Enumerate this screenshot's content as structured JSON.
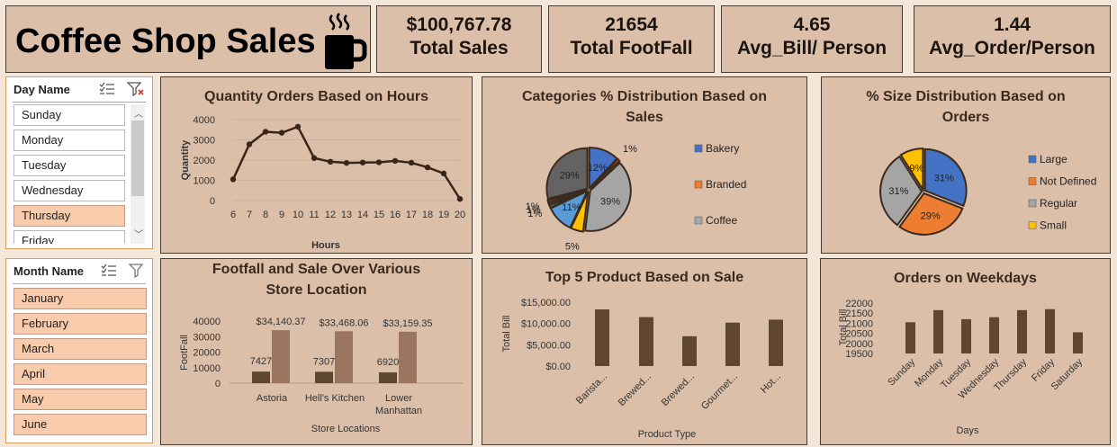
{
  "header": {
    "title": "Coffee Shop Sales"
  },
  "kpis": [
    {
      "value": "$100,767.78",
      "label": "Total Sales"
    },
    {
      "value": "21654",
      "label": "Total FootFall"
    },
    {
      "value": "4.65",
      "label": "Avg_Bill/ Person"
    },
    {
      "value": "1.44",
      "label": "Avg_Order/Person"
    }
  ],
  "day_slicer": {
    "title": "Day Name",
    "items": [
      "Sunday",
      "Monday",
      "Tuesday",
      "Wednesday",
      "Thursday",
      "Friday"
    ],
    "selected": [
      "Thursday"
    ]
  },
  "month_slicer": {
    "title": "Month Name",
    "items": [
      "January",
      "February",
      "March",
      "April",
      "May",
      "June"
    ],
    "selected": [
      "January",
      "February",
      "March",
      "April",
      "May",
      "June"
    ]
  },
  "colors": {
    "dark_brown": "#4a3424",
    "mid_brown": "#8f6e56",
    "bar": "#5e4631",
    "bar_light": "#9a7660"
  },
  "chart_data": [
    {
      "id": "hours",
      "type": "line",
      "title": "Quantity Orders Based on Hours",
      "xlabel": "Hours",
      "ylabel": "Quantity",
      "x": [
        6,
        7,
        8,
        9,
        10,
        11,
        12,
        13,
        14,
        15,
        16,
        17,
        18,
        19,
        20
      ],
      "values": [
        1050,
        2780,
        3400,
        3350,
        3650,
        2100,
        1920,
        1860,
        1880,
        1890,
        1960,
        1870,
        1640,
        1340,
        80
      ],
      "ylim": [
        0,
        4000
      ],
      "yticks": [
        "0",
        "1000",
        "2000",
        "3000",
        "4000"
      ]
    },
    {
      "id": "categories",
      "type": "pie",
      "title": "Categories % Distribution Based on Sales",
      "slices": [
        {
          "label": "12%",
          "value": 12,
          "color": "#4472c4",
          "series": "Bakery"
        },
        {
          "label": "1%",
          "value": 1,
          "color": "#ed7d31",
          "series": "Branded"
        },
        {
          "label": "39%",
          "value": 39,
          "color": "#a5a5a5",
          "series": "Coffee"
        },
        {
          "label": "5%",
          "value": 5,
          "color": "#ffc000"
        },
        {
          "label": "11%",
          "value": 11,
          "color": "#5b9bd5"
        },
        {
          "label": "1%",
          "value": 1,
          "color": "#70ad47"
        },
        {
          "label": "1%",
          "value": 1,
          "color": "#264478"
        },
        {
          "label": "1%",
          "value": 1,
          "color": "#9e480e"
        },
        {
          "label": "29%",
          "value": 29,
          "color": "#636363"
        }
      ],
      "legend": [
        "Bakery",
        "Branded",
        "Coffee"
      ]
    },
    {
      "id": "sizes",
      "type": "pie",
      "title": "% Size Distribution Based on Orders",
      "slices": [
        {
          "label": "31%",
          "value": 31,
          "color": "#4472c4",
          "series": "Large"
        },
        {
          "label": "29%",
          "value": 29,
          "color": "#ed7d31",
          "series": "Not Defined"
        },
        {
          "label": "31%",
          "value": 31,
          "color": "#a5a5a5",
          "series": "Regular"
        },
        {
          "label": "9%",
          "value": 9,
          "color": "#ffc000",
          "series": "Small"
        }
      ],
      "legend": [
        "Large",
        "Not Defined",
        "Regular",
        "Small"
      ]
    },
    {
      "id": "stores",
      "type": "bar",
      "title": "Footfall and Sale Over Various Store Location",
      "xlabel": "Store Locations",
      "ylabel": "FootFall",
      "categories": [
        "Astoria",
        "Hell's Kitchen",
        "Lower Manhattan"
      ],
      "series": [
        {
          "values": [
            7427,
            7307,
            6920
          ],
          "labels": [
            "7427",
            "7307",
            "6920"
          ]
        },
        {
          "values": [
            34140.37,
            33468.06,
            33159.35
          ],
          "labels": [
            "$34,140.37",
            "$33,468.06",
            "$33,159.35"
          ]
        }
      ],
      "ylim": [
        0,
        40000
      ],
      "yticks": [
        "0",
        "10000",
        "20000",
        "30000",
        "40000"
      ]
    },
    {
      "id": "products",
      "type": "bar",
      "title": "Top 5 Product Based on Sale",
      "xlabel": "Product Type",
      "ylabel": "Total Bill",
      "categories": [
        "Barista...",
        "Brewed...",
        "Brewed...",
        "Gourmet...",
        "Hot..."
      ],
      "values": [
        13300,
        11500,
        7000,
        10200,
        10900
      ],
      "ylim": [
        0,
        15000
      ],
      "yticks": [
        "$0.00",
        "$5,000.00",
        "$10,000.00",
        "$15,000.00"
      ]
    },
    {
      "id": "weekdays",
      "type": "bar",
      "title": "Orders on Weekdays",
      "xlabel": "Days",
      "ylabel": "Total Bill",
      "categories": [
        "Sunday",
        "Monday",
        "Tuesday",
        "Wednesday",
        "Thursday",
        "Friday",
        "Saturday"
      ],
      "values": [
        21050,
        21650,
        21200,
        21300,
        21650,
        21700,
        20550
      ],
      "ylim": [
        19500,
        22000
      ],
      "yticks": [
        "19500",
        "20000",
        "20500",
        "21000",
        "21500",
        "22000"
      ]
    }
  ]
}
